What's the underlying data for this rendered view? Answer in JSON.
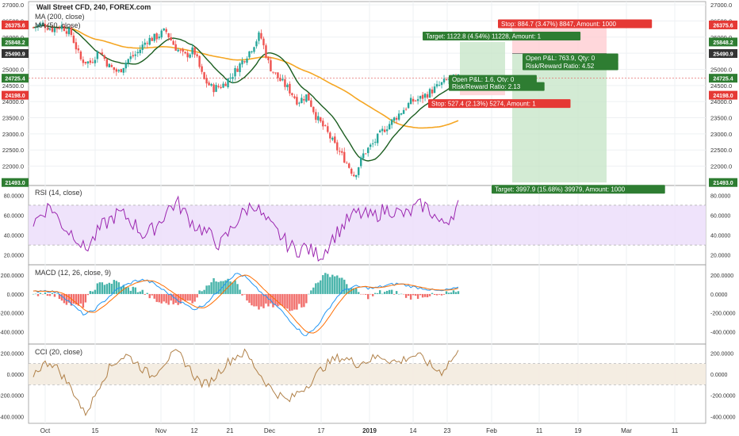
{
  "title": {
    "symbol": "Wall Street CFD, 240, FOREX.com",
    "ma200": "MA (200, close)",
    "ma50": "MA (50, close)"
  },
  "rsi_label": "RSI (14, close)",
  "macd_label": "MACD (12, 26, close, 9)",
  "cci_label": "CCI (20, close)",
  "price_axis": [
    "27000.0",
    "26500.0",
    "26000.0",
    "25500.0",
    "25000.0",
    "24500.0",
    "24000.0",
    "23500.0",
    "23000.0",
    "22500.0",
    "22000.0"
  ],
  "rsi_axis": [
    "80.0000",
    "60.0000",
    "40.0000",
    "20.0000"
  ],
  "macd_axis": [
    "200.0000",
    "0.0000",
    "-200.0000",
    "-400.0000"
  ],
  "cci_axis": [
    "200.0000",
    "0.0000",
    "-200.0000",
    "-400.0000"
  ],
  "time_axis": [
    "Oct",
    "15",
    "Nov",
    "12",
    "21",
    "Dec",
    "17",
    "2019",
    "14",
    "23",
    "Feb",
    "11",
    "19",
    "Mar",
    "11"
  ],
  "price_tags": [
    {
      "text": "26375.6",
      "color": "#e53935"
    },
    {
      "text": "25848.2",
      "color": "#2e7d32"
    },
    {
      "text": "25490.9",
      "color": "#333333"
    },
    {
      "text": "24725.4",
      "color": "#2e7d32"
    },
    {
      "text": "24198.0",
      "color": "#e53935"
    },
    {
      "text": "21493.0",
      "color": "#2e7d32"
    }
  ],
  "short_position": {
    "stop": "Stop: 884.7 (3.47%) 8847, Amount: 1000",
    "open_pl": "Open P&L: 763.9, Qty: 0",
    "risk_reward": "Risk/Reward Ratio: 4.52",
    "target": "Target: 3997.9 (15.68%) 39979, Amount: 1000"
  },
  "long_position": {
    "target": "Target: 1122.8 (4.54%) 11228, Amount: 1",
    "open_pl": "Open P&L: 1.6, Qty: 0",
    "risk_reward": "Risk/Reward Ratio: 2.13",
    "stop": "Stop: 527.4 (2.13%) 5274, Amount: 1"
  },
  "colors": {
    "up": "#26a69a",
    "down": "#ef5350",
    "ma50": "#1b5e20",
    "ma200": "#f5a623",
    "rsi": "#9c27b0",
    "macd": "#2196f3",
    "signal": "#ff6d00",
    "cci": "#b08048",
    "profit_zone": "#c8e6c9",
    "loss_zone": "#ffcdd2"
  },
  "chart_data": [
    {
      "type": "candlestick",
      "title": "Wall Street CFD, 240, FOREX.com",
      "ylim": [
        21400,
        27100
      ],
      "x_ticks": [
        "Oct",
        "15",
        "Nov",
        "12",
        "21",
        "Dec",
        "17",
        "2019",
        "14",
        "23",
        "Feb",
        "11",
        "19",
        "Mar",
        "11"
      ],
      "close_path": [
        [
          "Oct",
          26300
        ],
        [
          "",
          26400
        ],
        [
          "",
          26250
        ],
        [
          "",
          26350
        ],
        [
          "",
          26100
        ],
        [
          "15",
          25300
        ],
        [
          "",
          25200
        ],
        [
          "",
          25600
        ],
        [
          "",
          25100
        ],
        [
          "",
          24900
        ],
        [
          "Nov",
          25300
        ],
        [
          "",
          25500
        ],
        [
          "",
          25900
        ],
        [
          "",
          26000
        ],
        [
          "",
          26200
        ],
        [
          "12",
          25700
        ],
        [
          "",
          25400
        ],
        [
          "",
          25600
        ],
        [
          "",
          24700
        ],
        [
          "",
          24400
        ],
        [
          "21",
          24500
        ],
        [
          "",
          24800
        ],
        [
          "",
          25200
        ],
        [
          "",
          25600
        ],
        [
          "",
          26100
        ],
        [
          "Dec",
          25100
        ],
        [
          "",
          24700
        ],
        [
          "",
          24400
        ],
        [
          "",
          24000
        ],
        [
          "",
          24200
        ],
        [
          "17",
          23500
        ],
        [
          "",
          23100
        ],
        [
          "",
          22600
        ],
        [
          "",
          22200
        ],
        [
          "",
          21700
        ],
        [
          "",
          22400
        ],
        [
          "2019",
          22700
        ],
        [
          "",
          23100
        ],
        [
          "",
          23400
        ],
        [
          "",
          23700
        ],
        [
          "14",
          24000
        ],
        [
          "",
          24100
        ],
        [
          "",
          24300
        ],
        [
          "",
          24500
        ],
        [
          "23",
          24700
        ],
        [
          "",
          24725
        ]
      ],
      "series": [
        {
          "name": "MA (200, close)"
        },
        {
          "name": "MA (50, close)"
        }
      ]
    },
    {
      "type": "line",
      "title": "RSI (14, close)",
      "ylim": [
        15,
        85
      ],
      "bands": [
        30,
        70
      ],
      "values": [
        52,
        62,
        70,
        55,
        45,
        40,
        25,
        35,
        48,
        55,
        62,
        58,
        50,
        40,
        45,
        55,
        68,
        72,
        60,
        50,
        45,
        38,
        30,
        42,
        55,
        65,
        72,
        58,
        48,
        40,
        30,
        25,
        28,
        22,
        20,
        35,
        45,
        55,
        62,
        60,
        58,
        64,
        66,
        62,
        60,
        68,
        70,
        62,
        50,
        58,
        70
      ]
    },
    {
      "type": "line",
      "title": "MACD (12, 26, close, 9)",
      "ylim": [
        -480,
        260
      ],
      "series": [
        {
          "name": "MACD",
          "values": [
            20,
            40,
            30,
            10,
            -60,
            -150,
            -220,
            -180,
            -100,
            -20,
            60,
            100,
            140,
            150,
            120,
            60,
            0,
            -60,
            -120,
            -160,
            -120,
            -40,
            60,
            160,
            220,
            180,
            80,
            0,
            -80,
            -160,
            -260,
            -360,
            -440,
            -380,
            -260,
            -120,
            0,
            60,
            80,
            70,
            60,
            80,
            100,
            110,
            90,
            70,
            60,
            40,
            30,
            50,
            60
          ]
        },
        {
          "name": "Signal"
        }
      ]
    },
    {
      "type": "line",
      "title": "CCI (20, close)",
      "ylim": [
        -420,
        240
      ],
      "bands": [
        100,
        -100
      ],
      "values": [
        0,
        80,
        120,
        40,
        -80,
        -200,
        -380,
        -250,
        -60,
        60,
        140,
        180,
        120,
        40,
        -20,
        80,
        160,
        200,
        100,
        -20,
        -100,
        -60,
        40,
        120,
        180,
        200,
        80,
        -40,
        -140,
        -200,
        -260,
        -180,
        -120,
        -40,
        60,
        120,
        160,
        140,
        100,
        120,
        150,
        170,
        130,
        110,
        160,
        180,
        140,
        60,
        20,
        120,
        200
      ]
    }
  ]
}
